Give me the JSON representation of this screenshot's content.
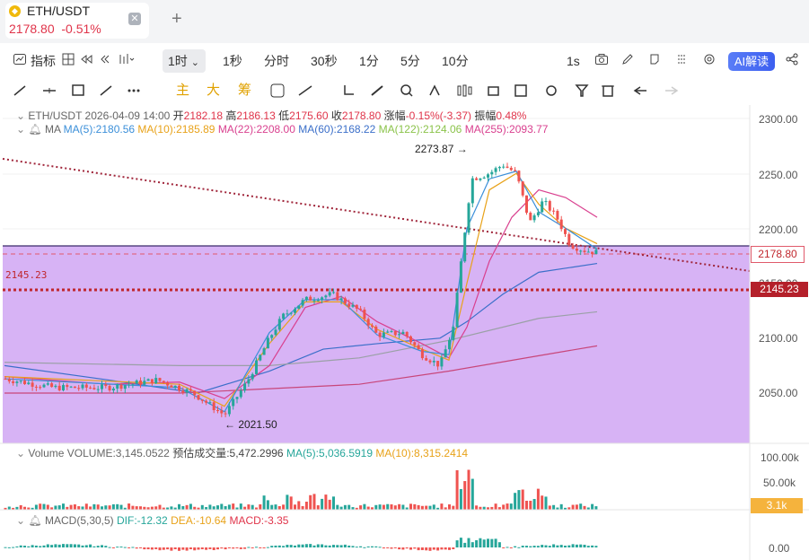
{
  "tab": {
    "title": "ETH/USDT",
    "price": "2178.80",
    "change": "-0.51%",
    "coin_glyph": "◆",
    "add": "+"
  },
  "toolbar": {
    "indicators": "指标",
    "interval_selected": "1时",
    "intervals": [
      "1秒",
      "分时",
      "30秒",
      "1分",
      "5分",
      "10分"
    ],
    "right_interval": "1s",
    "ai_label": "AI解读"
  },
  "drawbar": {
    "main": "主",
    "big": "大",
    "chip": "筹"
  },
  "info": {
    "symbol": "ETH/USDT",
    "datetime": "2026-04-09 14:00",
    "open_label": "开",
    "open": "2182.18",
    "high_label": "高",
    "high": "2186.13",
    "low_label": "低",
    "low": "2175.60",
    "close_label": "收",
    "close": "2178.80",
    "change_label": "涨幅",
    "change": "-0.15%(-3.37)",
    "amp_label": "振幅",
    "amp": "0.48%"
  },
  "ma": {
    "label": "MA",
    "ma5": "MA(5):2180.56",
    "ma10": "MA(10):2185.89",
    "ma22": "MA(22):2208.00",
    "ma60": "MA(60):2168.22",
    "ma122": "MA(122):2124.06",
    "ma255": "MA(255):2093.77",
    "colors": {
      "ma5": "#3b8fd9",
      "ma10": "#e8a219",
      "ma22": "#d9408f",
      "ma60": "#3b6fc9",
      "ma122": "#9aa0a6",
      "ma255": "#c8467a"
    }
  },
  "price_axis": [
    "2300.00",
    "2250.00",
    "2200.00",
    "2150.00",
    "2100.00",
    "2050.00"
  ],
  "price_tags": {
    "current": "2178.80",
    "line": "2145.23"
  },
  "annotations": {
    "high": "2273.87 →",
    "low": "← 2021.50",
    "level": "2145.23"
  },
  "volume": {
    "label": "Volume",
    "value": "VOLUME:3,145.0522",
    "est_label": "预估成交量:5,472.2996",
    "ma5": "MA(5):5,036.5919",
    "ma10": "MA(10):8,315.2414",
    "axis": [
      "100.00k",
      "50.00k"
    ],
    "current": "3.1k"
  },
  "macd": {
    "label": "MACD(5,30,5)",
    "dif": "DIF:-12.32",
    "dea": "DEA:-10.64",
    "macd": "MACD:-3.35",
    "axis": "0.00"
  },
  "colors": {
    "up": "#26a69a",
    "down": "#ef5350",
    "zone": "#d7b3f5",
    "ai": "#4a6cf7",
    "accent": "#e0344a"
  }
}
